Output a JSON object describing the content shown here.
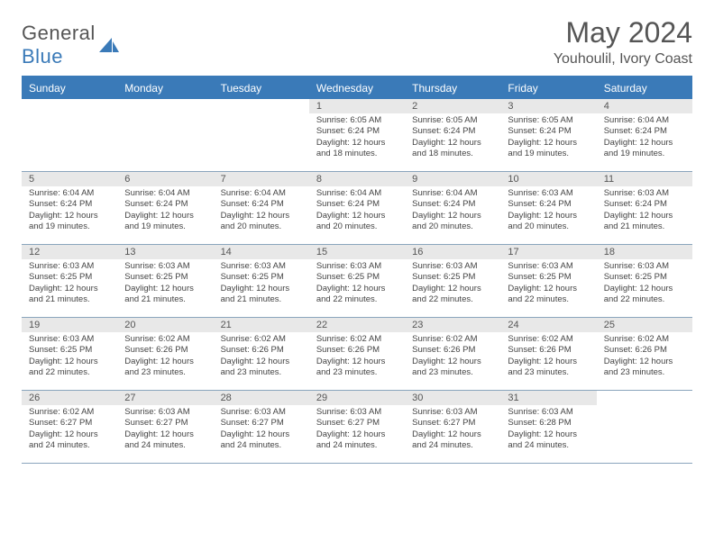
{
  "logo": {
    "text1": "General",
    "text2": "Blue"
  },
  "title": "May 2024",
  "location": "Youhoulil, Ivory Coast",
  "colors": {
    "header_bg": "#3a7ab8",
    "daynum_bg": "#e8e8e8",
    "week_border": "#8aa5bd",
    "text": "#555555"
  },
  "day_names": [
    "Sunday",
    "Monday",
    "Tuesday",
    "Wednesday",
    "Thursday",
    "Friday",
    "Saturday"
  ],
  "weeks": [
    [
      {
        "n": "",
        "sr": "",
        "ss": "",
        "dl": ""
      },
      {
        "n": "",
        "sr": "",
        "ss": "",
        "dl": ""
      },
      {
        "n": "",
        "sr": "",
        "ss": "",
        "dl": ""
      },
      {
        "n": "1",
        "sr": "6:05 AM",
        "ss": "6:24 PM",
        "dl": "12 hours and 18 minutes."
      },
      {
        "n": "2",
        "sr": "6:05 AM",
        "ss": "6:24 PM",
        "dl": "12 hours and 18 minutes."
      },
      {
        "n": "3",
        "sr": "6:05 AM",
        "ss": "6:24 PM",
        "dl": "12 hours and 19 minutes."
      },
      {
        "n": "4",
        "sr": "6:04 AM",
        "ss": "6:24 PM",
        "dl": "12 hours and 19 minutes."
      }
    ],
    [
      {
        "n": "5",
        "sr": "6:04 AM",
        "ss": "6:24 PM",
        "dl": "12 hours and 19 minutes."
      },
      {
        "n": "6",
        "sr": "6:04 AM",
        "ss": "6:24 PM",
        "dl": "12 hours and 19 minutes."
      },
      {
        "n": "7",
        "sr": "6:04 AM",
        "ss": "6:24 PM",
        "dl": "12 hours and 20 minutes."
      },
      {
        "n": "8",
        "sr": "6:04 AM",
        "ss": "6:24 PM",
        "dl": "12 hours and 20 minutes."
      },
      {
        "n": "9",
        "sr": "6:04 AM",
        "ss": "6:24 PM",
        "dl": "12 hours and 20 minutes."
      },
      {
        "n": "10",
        "sr": "6:03 AM",
        "ss": "6:24 PM",
        "dl": "12 hours and 20 minutes."
      },
      {
        "n": "11",
        "sr": "6:03 AM",
        "ss": "6:24 PM",
        "dl": "12 hours and 21 minutes."
      }
    ],
    [
      {
        "n": "12",
        "sr": "6:03 AM",
        "ss": "6:25 PM",
        "dl": "12 hours and 21 minutes."
      },
      {
        "n": "13",
        "sr": "6:03 AM",
        "ss": "6:25 PM",
        "dl": "12 hours and 21 minutes."
      },
      {
        "n": "14",
        "sr": "6:03 AM",
        "ss": "6:25 PM",
        "dl": "12 hours and 21 minutes."
      },
      {
        "n": "15",
        "sr": "6:03 AM",
        "ss": "6:25 PM",
        "dl": "12 hours and 22 minutes."
      },
      {
        "n": "16",
        "sr": "6:03 AM",
        "ss": "6:25 PM",
        "dl": "12 hours and 22 minutes."
      },
      {
        "n": "17",
        "sr": "6:03 AM",
        "ss": "6:25 PM",
        "dl": "12 hours and 22 minutes."
      },
      {
        "n": "18",
        "sr": "6:03 AM",
        "ss": "6:25 PM",
        "dl": "12 hours and 22 minutes."
      }
    ],
    [
      {
        "n": "19",
        "sr": "6:03 AM",
        "ss": "6:25 PM",
        "dl": "12 hours and 22 minutes."
      },
      {
        "n": "20",
        "sr": "6:02 AM",
        "ss": "6:26 PM",
        "dl": "12 hours and 23 minutes."
      },
      {
        "n": "21",
        "sr": "6:02 AM",
        "ss": "6:26 PM",
        "dl": "12 hours and 23 minutes."
      },
      {
        "n": "22",
        "sr": "6:02 AM",
        "ss": "6:26 PM",
        "dl": "12 hours and 23 minutes."
      },
      {
        "n": "23",
        "sr": "6:02 AM",
        "ss": "6:26 PM",
        "dl": "12 hours and 23 minutes."
      },
      {
        "n": "24",
        "sr": "6:02 AM",
        "ss": "6:26 PM",
        "dl": "12 hours and 23 minutes."
      },
      {
        "n": "25",
        "sr": "6:02 AM",
        "ss": "6:26 PM",
        "dl": "12 hours and 23 minutes."
      }
    ],
    [
      {
        "n": "26",
        "sr": "6:02 AM",
        "ss": "6:27 PM",
        "dl": "12 hours and 24 minutes."
      },
      {
        "n": "27",
        "sr": "6:03 AM",
        "ss": "6:27 PM",
        "dl": "12 hours and 24 minutes."
      },
      {
        "n": "28",
        "sr": "6:03 AM",
        "ss": "6:27 PM",
        "dl": "12 hours and 24 minutes."
      },
      {
        "n": "29",
        "sr": "6:03 AM",
        "ss": "6:27 PM",
        "dl": "12 hours and 24 minutes."
      },
      {
        "n": "30",
        "sr": "6:03 AM",
        "ss": "6:27 PM",
        "dl": "12 hours and 24 minutes."
      },
      {
        "n": "31",
        "sr": "6:03 AM",
        "ss": "6:28 PM",
        "dl": "12 hours and 24 minutes."
      },
      {
        "n": "",
        "sr": "",
        "ss": "",
        "dl": ""
      }
    ]
  ],
  "labels": {
    "sunrise": "Sunrise:",
    "sunset": "Sunset:",
    "daylight": "Daylight:"
  }
}
